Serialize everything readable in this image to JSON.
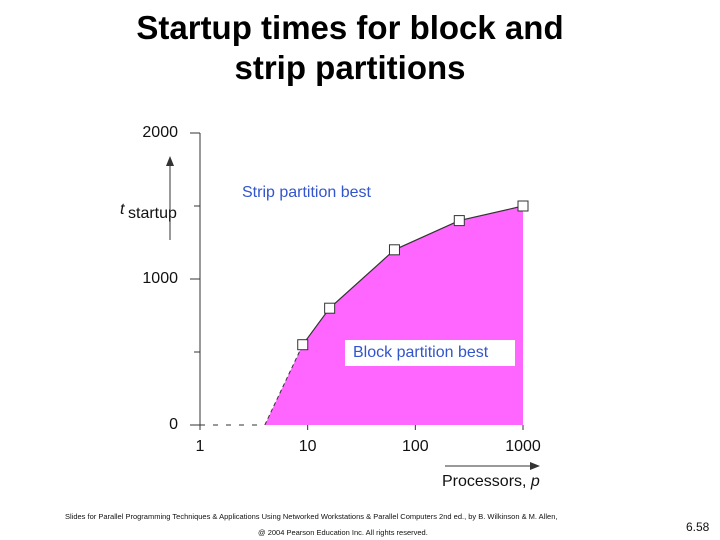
{
  "chart_data": {
    "type": "area",
    "title": "Startup times for block and strip partitions",
    "y_label": {
      "main": "t",
      "sub": "startup"
    },
    "x_label": {
      "text": "Processors, ",
      "var": "p"
    },
    "x": [
      4,
      9,
      16,
      64,
      256,
      1000
    ],
    "series": [
      {
        "color": "#ff66ff",
        "values": [
          0,
          550,
          800,
          1200,
          1400,
          1500
        ]
      }
    ],
    "xlim": [
      1,
      1000
    ],
    "xticks": [
      1,
      10,
      100,
      1000
    ],
    "xlog": true,
    "ylim": [
      0,
      2000
    ],
    "yticks": [
      0,
      1000,
      2000
    ],
    "yminor": [
      500,
      1500
    ],
    "annotations": [
      "Strip partition best",
      "Block partition best"
    ]
  },
  "footer": {
    "line1": "Slides for Parallel Programming Techniques & Applications Using Networked Workstations & Parallel Computers 2nd ed., by B. Wilkinson & M. Allen,",
    "line2": "@ 2004 Pearson Education Inc. All rights reserved.",
    "page": "6.58"
  }
}
